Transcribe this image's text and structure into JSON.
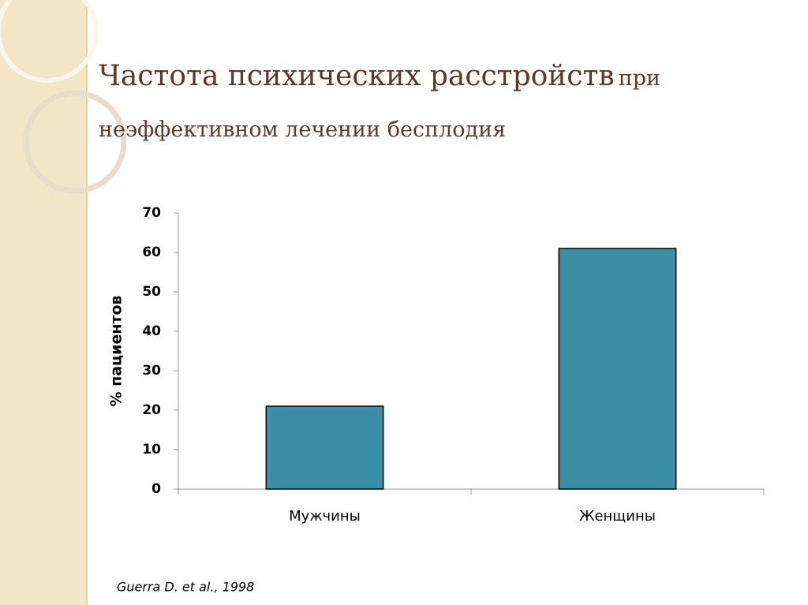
{
  "chart_data": {
    "type": "bar",
    "title": "Частота психических расстройств",
    "subtitle": "при неэффективном лечении бесплодия",
    "ylabel": "% пациентов",
    "categories": [
      "Мужчины",
      "Женщины"
    ],
    "values": [
      21,
      61
    ],
    "color": "#3a8fa6",
    "ylim": [
      0,
      70
    ],
    "yticks": [
      0,
      10,
      20,
      30,
      40,
      50,
      60,
      70
    ],
    "grid": false
  },
  "note": "Guerra D. et al., 1998"
}
